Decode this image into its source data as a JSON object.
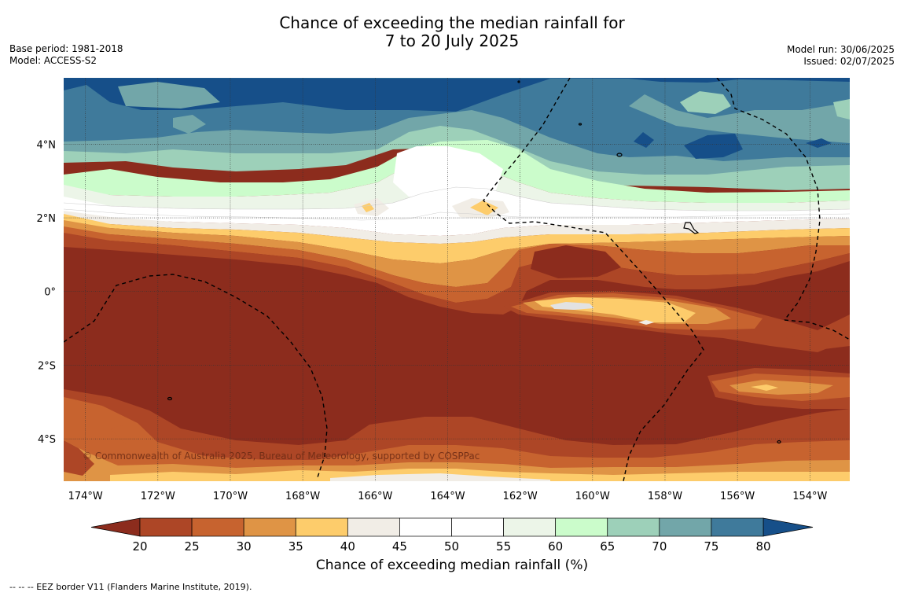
{
  "title": {
    "line1": "Chance of exceeding the median rainfall for",
    "line2": "7 to 20 July 2025"
  },
  "meta": {
    "base_period": "Base period: 1981-2018",
    "model": "Model: ACCESS-S2",
    "model_run": "Model run: 30/06/2025",
    "issued": "Issued: 02/07/2025"
  },
  "map": {
    "lon_range": [
      -174.6,
      -152.9
    ],
    "lat_range": [
      -5.15,
      5.8
    ],
    "lon_ticks": [
      {
        "value": -174,
        "label": "174°W"
      },
      {
        "value": -172,
        "label": "172°W"
      },
      {
        "value": -170,
        "label": "170°W"
      },
      {
        "value": -168,
        "label": "168°W"
      },
      {
        "value": -166,
        "label": "166°W"
      },
      {
        "value": -164,
        "label": "164°W"
      },
      {
        "value": -162,
        "label": "162°W"
      },
      {
        "value": -160,
        "label": "160°W"
      },
      {
        "value": -158,
        "label": "158°W"
      },
      {
        "value": -156,
        "label": "156°W"
      },
      {
        "value": -154,
        "label": "154°W"
      }
    ],
    "lat_ticks": [
      {
        "value": 4,
        "label": "4°N"
      },
      {
        "value": 2,
        "label": "2°N"
      },
      {
        "value": 0,
        "label": "0°"
      },
      {
        "value": -2,
        "label": "2°S"
      },
      {
        "value": -4,
        "label": "4°S"
      }
    ],
    "copyright": "© Commonwealth of Australia 2025, Bureau of Meteorology, supported by COSPPac"
  },
  "colorbar": {
    "ticks": [
      "20",
      "25",
      "30",
      "35",
      "40",
      "45",
      "50",
      "55",
      "60",
      "65",
      "70",
      "75",
      "80"
    ],
    "colors": {
      "under": "#8c2c1d",
      "bins": [
        "#ad4626",
        "#c7632f",
        "#df9445",
        "#fdcc6b",
        "#f1ede6",
        "#ffffff",
        "#ffffff",
        "#ecf5e8",
        "#cbfccb",
        "#9dd0b9",
        "#72a6a9",
        "#3f7a9b"
      ],
      "over": "#164f89"
    },
    "label": "Chance of exceeding median rainfall (%)"
  },
  "footnote": "--  --  -- EEZ border V11 (Flanders Marine Institute, 2019)."
}
